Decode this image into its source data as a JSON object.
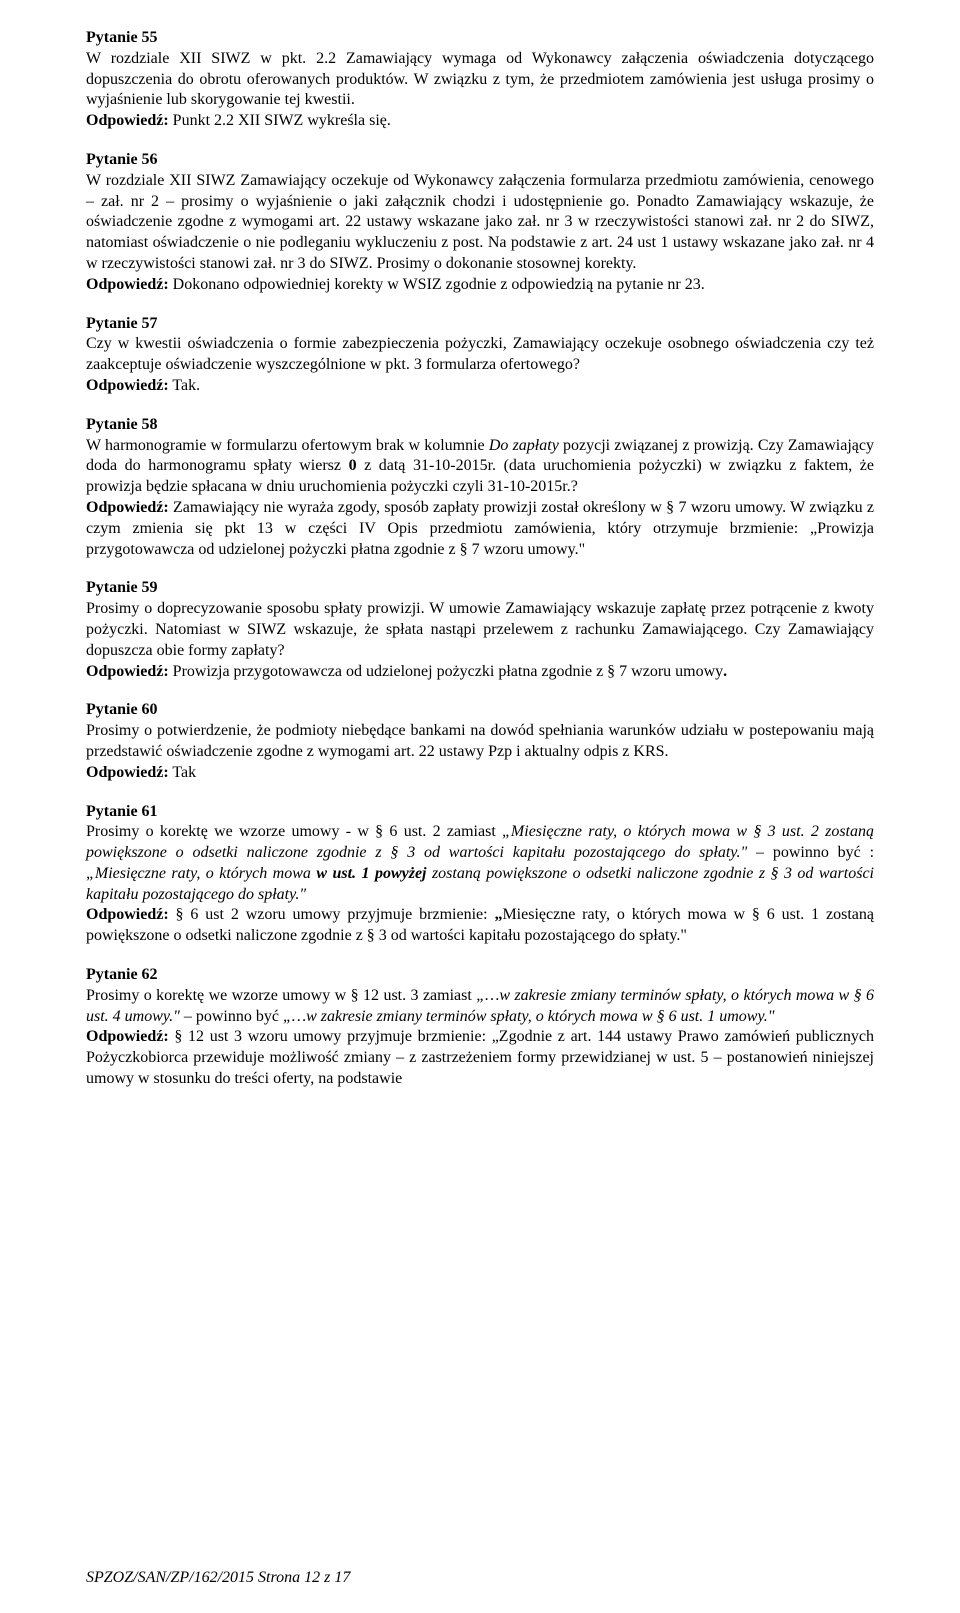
{
  "questions": [
    {
      "label": "Pytanie 55",
      "body": "W rozdziale XII SIWZ w pkt. 2.2 Zamawiający wymaga od Wykonawcy załączenia oświadczenia dotyczącego dopuszczenia do obrotu oferowanych produktów. W związku z tym, że przedmiotem zamówienia jest usługa prosimy o wyjaśnienie lub skorygowanie tej kwestii.",
      "answer_label": "Odpowiedź:",
      "answer": " Punkt 2.2 XII SIWZ wykreśla się."
    },
    {
      "label": "Pytanie 56",
      "body": "W rozdziale XII SIWZ Zamawiający oczekuje od Wykonawcy załączenia formularza przedmiotu zamówienia, cenowego – zał. nr 2 – prosimy o wyjaśnienie o jaki załącznik chodzi i udostępnienie go. Ponadto Zamawiający wskazuje, że oświadczenie zgodne z wymogami\nart. 22 ustawy wskazane jako zał. nr 3 w rzeczywistości stanowi zał. nr 2 do SIWZ, natomiast oświadczenie o nie podleganiu wykluczeniu z post. Na podstawie z art. 24 ust 1 ustawy wskazane jako zał. nr 4 w rzeczywistości stanowi zał. nr 3 do SIWZ. Prosimy o dokonanie stosownej korekty.",
      "answer_label": "Odpowiedź:",
      "answer": " Dokonano odpowiedniej korekty w WSIZ zgodnie z odpowiedzią na pytanie nr 23."
    },
    {
      "label": "Pytanie 57",
      "body": "Czy w kwestii oświadczenia o formie zabezpieczenia pożyczki, Zamawiający oczekuje osobnego oświadczenia czy też zaakceptuje oświadczenie wyszczególnione w pkt. 3 formularza ofertowego?",
      "answer_label": "Odpowiedź:",
      "answer": " Tak."
    },
    {
      "label": "Pytanie 58",
      "body_html": "W harmonogramie w formularzu ofertowym brak w kolumnie <span class=\"italic\">Do zapłaty</span> pozycji związanej z prowizją. Czy Zamawiający doda do harmonogramu spłaty wiersz <b>0</b> z datą 31-10-2015r. (data uruchomienia pożyczki) w związku z faktem, że prowizja będzie spłacana w dniu uruchomienia pożyczki czyli 31-10-2015r.?",
      "answer_label": "Odpowiedź:",
      "answer": " Zamawiający nie wyraża zgody, sposób zapłaty prowizji został określony w § 7 wzoru umowy. W związku z czym zmienia się pkt 13 w części IV Opis przedmiotu zamówienia, który otrzymuje brzmienie: „Prowizja przygotowawcza od udzielonej pożyczki płatna zgodnie z § 7 wzoru umowy.\""
    },
    {
      "label": "Pytanie 59",
      "body": "Prosimy o doprecyzowanie sposobu spłaty prowizji. W umowie Zamawiający wskazuje zapłatę przez potrącenie z kwoty pożyczki. Natomiast w SIWZ wskazuje, że spłata nastąpi przelewem z rachunku Zamawiającego. Czy Zamawiający dopuszcza obie formy zapłaty?",
      "answer_label": "Odpowiedź:",
      "answer_html": " Prowizja przygotowawcza od udzielonej pożyczki płatna zgodnie z § 7 wzoru umowy<b>.</b>"
    },
    {
      "label": "Pytanie 60",
      "body": "Prosimy o potwierdzenie, że podmioty niebędące bankami na dowód spełniania warunków udziału w postepowaniu mają przedstawić oświadczenie zgodne z wymogami art. 22 ustawy Pzp i aktualny odpis z KRS.",
      "answer_label": "Odpowiedź:",
      "answer": " Tak"
    },
    {
      "label": "Pytanie 61",
      "body_html": "Prosimy o korektę we wzorze umowy - w § 6 ust. 2 zamiast <span class=\"italic\">„Miesięczne raty, o których mowa w § 3 ust. 2 zostaną powiększone o odsetki naliczone zgodnie z § 3 od wartości kapitału pozostającego do spłaty.\"</span> – powinno być : <span class=\"italic\">„Miesięczne raty, o których mowa <b>w ust. 1 powyżej</b> zostaną powiększone o odsetki naliczone zgodnie z § 3 od wartości kapitału pozostającego do spłaty.\"</span>",
      "answer_label": "Odpowiedź:",
      "answer_html": " § 6 ust 2 wzoru umowy przyjmuje brzmienie: <b>„</b>Miesięczne raty, o których mowa w § 6 ust. 1 zostaną powiększone o odsetki naliczone zgodnie z § 3 od wartości kapitału pozostającego do spłaty.\""
    },
    {
      "label": "Pytanie 62",
      "body_html": "Prosimy o korektę we wzorze umowy w § 12 ust. 3 zamiast <span class=\"italic\">„…w zakresie zmiany terminów spłaty, o których mowa w § 6 ust. 4 umowy.\"</span> – powinno być <span class=\"italic\">„…w zakresie zmiany terminów spłaty, o których mowa w § 6 ust. 1 umowy.\"</span>",
      "answer_label": "Odpowiedź:",
      "answer": " § 12 ust 3 wzoru umowy przyjmuje brzmienie: „Zgodnie z art. 144 ustawy Prawo zamówień publicznych Pożyczkobiorca przewiduje możliwość zmiany – z zastrzeżeniem formy przewidzianej w ust. 5 – postanowień niniejszej umowy w stosunku do treści oferty, na podstawie"
    }
  ],
  "footer": "SPZOZ/SAN/ZP/162/2015                        Strona 12 z 17"
}
